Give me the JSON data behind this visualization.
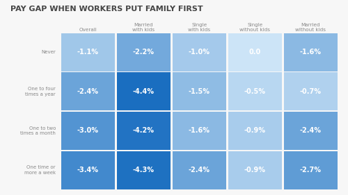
{
  "title": "PAY GAP WHEN WORKERS PUT FAMILY FIRST",
  "col_headers": [
    "Overall",
    "Married\nwith kids",
    "Single\nwith kids",
    "Single\nwithout kids",
    "Married\nwithout kids"
  ],
  "row_headers": [
    "Never",
    "One to four\ntimes a year",
    "One to two\ntimes a month",
    "One time or\nmore a week"
  ],
  "values": [
    [
      "-1.1%",
      "-2.2%",
      "-1.0%",
      "0.0",
      "-1.6%"
    ],
    [
      "-2.4%",
      "-4.4%",
      "-1.5%",
      "-0.5%",
      "-0.7%"
    ],
    [
      "-3.0%",
      "-4.2%",
      "-1.6%",
      "-0.9%",
      "-2.4%"
    ],
    [
      "-3.4%",
      "-4.3%",
      "-2.4%",
      "-0.9%",
      "-2.7%"
    ]
  ],
  "numeric_values": [
    [
      -1.1,
      -2.2,
      -1.0,
      0.0,
      -1.6
    ],
    [
      -2.4,
      -4.4,
      -1.5,
      -0.5,
      -0.7
    ],
    [
      -3.0,
      -4.2,
      -1.6,
      -0.9,
      -2.4
    ],
    [
      -3.4,
      -4.3,
      -2.4,
      -0.9,
      -2.7
    ]
  ],
  "bg_color": "#f7f7f7",
  "title_color": "#444444",
  "cell_text_color": "#ffffff",
  "header_text_color": "#888888",
  "row_header_text_color": "#888888",
  "color_light": "#add8f7",
  "color_mid": "#5baee8",
  "color_dark": "#1a72d4",
  "color_zero": "#cce8f8"
}
